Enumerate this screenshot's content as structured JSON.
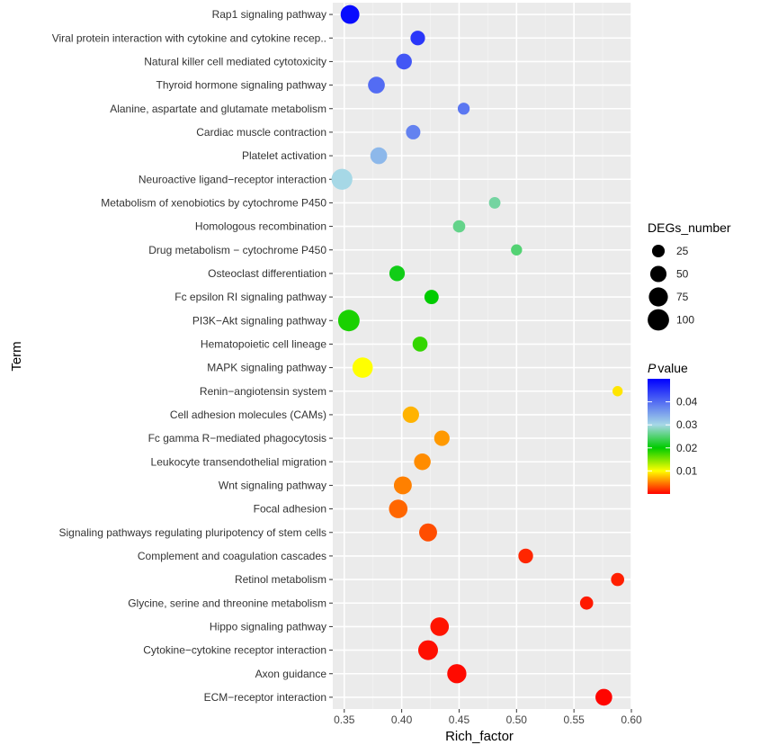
{
  "chart_data": {
    "type": "scatter",
    "xlabel": "Rich_factor",
    "ylabel": "Term",
    "xlim": [
      0.34,
      0.6
    ],
    "xticks": [
      0.35,
      0.4,
      0.45,
      0.5,
      0.55,
      0.6
    ],
    "xtick_labels": [
      "0.35",
      "0.40",
      "0.45",
      "0.50",
      "0.55",
      "0.60"
    ],
    "grid": true,
    "terms": [
      "Rap1 signaling pathway",
      "Viral protein interaction with cytokine and cytokine recep..",
      "Natural killer cell mediated cytotoxicity",
      "Thyroid hormone signaling pathway",
      "Alanine, aspartate and glutamate metabolism",
      "Cardiac muscle contraction",
      "Platelet activation",
      "Neuroactive ligand−receptor interaction",
      "Metabolism of xenobiotics by cytochrome P450",
      "Homologous recombination",
      "Drug metabolism − cytochrome P450",
      "Osteoclast differentiation",
      "Fc epsilon RI signaling pathway",
      "PI3K−Akt signaling pathway",
      "Hematopoietic cell lineage",
      "MAPK signaling pathway",
      "Renin−angiotensin system",
      "Cell adhesion molecules (CAMs)",
      "Fc gamma R−mediated phagocytosis",
      "Leukocyte transendothelial migration",
      "Wnt signaling pathway",
      "Focal adhesion",
      "Signaling pathways regulating pluripotency of stem cells",
      "Complement and coagulation cascades",
      "Retinol metabolism",
      "Glycine, serine and threonine metabolism",
      "Hippo signaling pathway",
      "Cytokine−cytokine receptor interaction",
      "Axon guidance",
      "ECM−receptor interaction"
    ],
    "points": [
      {
        "term": "Rap1 signaling pathway",
        "rich_factor": 0.355,
        "degs_number": 72,
        "pvalue": 0.049
      },
      {
        "term": "Viral protein interaction with cytokine and cytokine recep..",
        "rich_factor": 0.414,
        "degs_number": 37,
        "pvalue": 0.045
      },
      {
        "term": "Natural killer cell mediated cytotoxicity",
        "rich_factor": 0.402,
        "degs_number": 46,
        "pvalue": 0.042
      },
      {
        "term": "Thyroid hormone signaling pathway",
        "rich_factor": 0.378,
        "degs_number": 54,
        "pvalue": 0.04
      },
      {
        "term": "Alanine, aspartate and glutamate metabolism",
        "rich_factor": 0.454,
        "degs_number": 21,
        "pvalue": 0.039
      },
      {
        "term": "Cardiac muscle contraction",
        "rich_factor": 0.41,
        "degs_number": 36,
        "pvalue": 0.038
      },
      {
        "term": "Platelet activation",
        "rich_factor": 0.38,
        "degs_number": 54,
        "pvalue": 0.033
      },
      {
        "term": "Neuroactive ligand−receptor interaction",
        "rich_factor": 0.348,
        "degs_number": 94,
        "pvalue": 0.03
      },
      {
        "term": "Metabolism of xenobiotics by cytochrome P450",
        "rich_factor": 0.481,
        "degs_number": 19,
        "pvalue": 0.027
      },
      {
        "term": "Homologous recombination",
        "rich_factor": 0.45,
        "degs_number": 23,
        "pvalue": 0.026
      },
      {
        "term": "Drug metabolism − cytochrome P450",
        "rich_factor": 0.5,
        "degs_number": 17,
        "pvalue": 0.025
      },
      {
        "term": "Osteoclast differentiation",
        "rich_factor": 0.396,
        "degs_number": 44,
        "pvalue": 0.021
      },
      {
        "term": "Fc epsilon RI signaling pathway",
        "rich_factor": 0.426,
        "degs_number": 35,
        "pvalue": 0.02
      },
      {
        "term": "PI3K−Akt signaling pathway",
        "rich_factor": 0.354,
        "degs_number": 101,
        "pvalue": 0.019
      },
      {
        "term": "Hematopoietic cell lineage",
        "rich_factor": 0.416,
        "degs_number": 40,
        "pvalue": 0.018
      },
      {
        "term": "MAPK signaling pathway",
        "rich_factor": 0.366,
        "degs_number": 88,
        "pvalue": 0.01
      },
      {
        "term": "Renin−angiotensin system",
        "rich_factor": 0.588,
        "degs_number": 13,
        "pvalue": 0.009
      },
      {
        "term": "Cell adhesion molecules (CAMs)",
        "rich_factor": 0.408,
        "degs_number": 51,
        "pvalue": 0.007
      },
      {
        "term": "Fc gamma R−mediated phagocytosis",
        "rich_factor": 0.435,
        "degs_number": 43,
        "pvalue": 0.006
      },
      {
        "term": "Leukocyte transendothelial migration",
        "rich_factor": 0.418,
        "degs_number": 53,
        "pvalue": 0.0055
      },
      {
        "term": "Wnt signaling pathway",
        "rich_factor": 0.401,
        "degs_number": 64,
        "pvalue": 0.005
      },
      {
        "term": "Focal adhesion",
        "rich_factor": 0.397,
        "degs_number": 70,
        "pvalue": 0.004
      },
      {
        "term": "Signaling pathways regulating pluripotency of stem cells",
        "rich_factor": 0.423,
        "degs_number": 64,
        "pvalue": 0.003
      },
      {
        "term": "Complement and coagulation cascades",
        "rich_factor": 0.508,
        "degs_number": 38,
        "pvalue": 0.0015
      },
      {
        "term": "Retinol metabolism",
        "rich_factor": 0.588,
        "degs_number": 28,
        "pvalue": 0.0012
      },
      {
        "term": "Glycine, serine and threonine metabolism",
        "rich_factor": 0.561,
        "degs_number": 28,
        "pvalue": 0.001
      },
      {
        "term": "Hippo signaling pathway",
        "rich_factor": 0.433,
        "degs_number": 70,
        "pvalue": 0.0008
      },
      {
        "term": "Cytokine−cytokine receptor interaction",
        "rich_factor": 0.423,
        "degs_number": 82,
        "pvalue": 0.0006
      },
      {
        "term": "Axon guidance",
        "rich_factor": 0.448,
        "degs_number": 76,
        "pvalue": 0.0004
      },
      {
        "term": "ECM−receptor interaction",
        "rich_factor": 0.576,
        "degs_number": 54,
        "pvalue": 0.0002
      }
    ],
    "size_legend": {
      "title": "DEGs_number",
      "values": [
        25,
        50,
        75,
        100
      ],
      "labels": [
        "25",
        "50",
        "75",
        "100"
      ]
    },
    "color_legend": {
      "title_italic": "P",
      "title_rest": "value",
      "range": [
        0,
        0.05
      ],
      "ticks": [
        0.04,
        0.03,
        0.02,
        0.01
      ],
      "tick_labels": [
        "0.04",
        "0.03",
        "0.02",
        "0.01"
      ],
      "colormap": [
        {
          "p": 0.0,
          "color": "#ff0000"
        },
        {
          "p": 0.01,
          "color": "#ffff00"
        },
        {
          "p": 0.02,
          "color": "#00cc00"
        },
        {
          "p": 0.03,
          "color": "#a6d8e6"
        },
        {
          "p": 0.05,
          "color": "#0000ff"
        }
      ]
    },
    "colors": {
      "panel_bg": "#ebebeb",
      "grid_major": "#ffffff",
      "grid_minor": "#f4f4f4"
    }
  }
}
